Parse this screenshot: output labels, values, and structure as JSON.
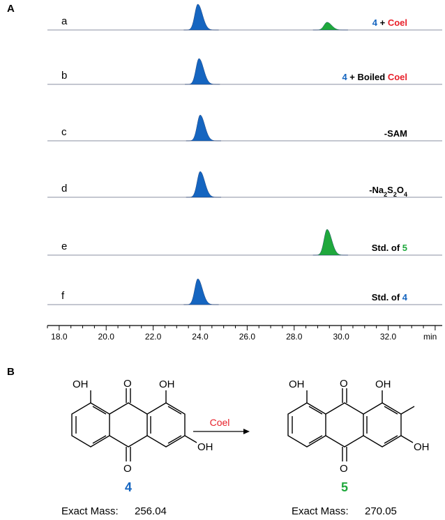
{
  "panel_a_label": "A",
  "panel_b_label": "B",
  "colors": {
    "blue": "#1565C0",
    "red": "#E8202A",
    "green": "#1FA83C",
    "baseline": "#8a8fa0"
  },
  "chart_data": {
    "type": "line",
    "x_unit": "min",
    "xlim": [
      17.5,
      34.3
    ],
    "xticks": [
      18.0,
      20.0,
      22.0,
      24.0,
      26.0,
      28.0,
      30.0,
      32.0
    ],
    "xtick_labels": [
      "18.0",
      "20.0",
      "22.0",
      "24.0",
      "26.0",
      "28.0",
      "30.0",
      "32.0"
    ],
    "traces": [
      {
        "row": "a",
        "peaks": [
          {
            "rt": 23.9,
            "height": 1.0,
            "color": "blue"
          },
          {
            "rt": 29.4,
            "height": 0.3,
            "color": "green"
          }
        ],
        "label_parts": [
          {
            "text": "4",
            "color": "blue"
          },
          {
            "text": " + ",
            "color": "black"
          },
          {
            "text": "Coel",
            "color": "red"
          }
        ]
      },
      {
        "row": "b",
        "peaks": [
          {
            "rt": 23.95,
            "height": 1.0,
            "color": "blue"
          }
        ],
        "label_parts": [
          {
            "text": "4",
            "color": "blue"
          },
          {
            "text": " + Boiled ",
            "color": "black"
          },
          {
            "text": "Coel",
            "color": "red"
          }
        ]
      },
      {
        "row": "c",
        "peaks": [
          {
            "rt": 24.0,
            "height": 1.0,
            "color": "blue"
          }
        ],
        "label_parts": [
          {
            "text": "-SAM",
            "color": "black"
          }
        ]
      },
      {
        "row": "d",
        "peaks": [
          {
            "rt": 24.0,
            "height": 1.0,
            "color": "blue"
          }
        ],
        "label_parts": [
          {
            "text": "-Na",
            "color": "black"
          },
          {
            "text": "2",
            "color": "black",
            "sub": true
          },
          {
            "text": "S",
            "color": "black"
          },
          {
            "text": "2",
            "color": "black",
            "sub": true
          },
          {
            "text": "O",
            "color": "black"
          },
          {
            "text": "4",
            "color": "black",
            "sub": true
          }
        ]
      },
      {
        "row": "e",
        "peaks": [
          {
            "rt": 29.4,
            "height": 1.0,
            "color": "green"
          }
        ],
        "label_parts": [
          {
            "text": "Std. of ",
            "color": "black"
          },
          {
            "text": "5",
            "color": "green"
          }
        ]
      },
      {
        "row": "f",
        "peaks": [
          {
            "rt": 23.9,
            "height": 1.0,
            "color": "blue"
          }
        ],
        "label_parts": [
          {
            "text": "Std. of ",
            "color": "black"
          },
          {
            "text": "4",
            "color": "blue"
          }
        ]
      }
    ]
  },
  "scheme": {
    "reagent": "Coel",
    "compound_4": {
      "number": "4",
      "mass_label": "Exact Mass:",
      "mass": "256.04",
      "substituents": [
        "OH",
        "OH",
        "OH"
      ],
      "ketone_o": [
        "O",
        "O"
      ]
    },
    "compound_5": {
      "number": "5",
      "mass_label": "Exact Mass:",
      "mass": "270.05",
      "substituents": [
        "OH",
        "OH",
        "OH"
      ],
      "ketone_o": [
        "O",
        "O"
      ]
    }
  }
}
